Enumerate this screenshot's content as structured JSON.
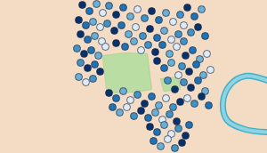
{
  "chart_data": {
    "type": "scatter",
    "tick_labels": false,
    "grid": false,
    "xlim": [
      0,
      300
    ],
    "ylim": [
      172,
      0
    ],
    "marker": "circle",
    "x": [
      92,
      100,
      108,
      115,
      122,
      130,
      138,
      146,
      154,
      162,
      170,
      178,
      186,
      194,
      202,
      210,
      218,
      226,
      206,
      214,
      222,
      230,
      88,
      96,
      104,
      112,
      120,
      90,
      98,
      106,
      114,
      86,
      94,
      102,
      110,
      118,
      90,
      98,
      106,
      88,
      96,
      104,
      112,
      128,
      136,
      144,
      152,
      160,
      168,
      176,
      184,
      192,
      200,
      130,
      140,
      150,
      158,
      166,
      174,
      182,
      190,
      198,
      206,
      208,
      216,
      224,
      232,
      204,
      212,
      220,
      228,
      236,
      206,
      214,
      222,
      230,
      210,
      218,
      226,
      234,
      176,
      184,
      192,
      200,
      188,
      196,
      122,
      130,
      138,
      146,
      154,
      162,
      170,
      178,
      186,
      194,
      202,
      126,
      134,
      142,
      150,
      158,
      166,
      174,
      182,
      190,
      198,
      168,
      176,
      184,
      192,
      200,
      208,
      172,
      180,
      188,
      196,
      204,
      212
    ],
    "y": [
      5,
      12,
      4,
      14,
      6,
      16,
      8,
      18,
      10,
      20,
      12,
      22,
      14,
      24,
      16,
      8,
      18,
      10,
      28,
      36,
      30,
      40,
      22,
      28,
      24,
      30,
      26,
      38,
      44,
      40,
      46,
      54,
      60,
      56,
      62,
      52,
      70,
      76,
      72,
      86,
      92,
      88,
      80,
      34,
      28,
      38,
      30,
      40,
      32,
      42,
      34,
      44,
      38,
      48,
      52,
      46,
      56,
      50,
      58,
      50,
      60,
      52,
      46,
      62,
      56,
      66,
      60,
      74,
      80,
      72,
      84,
      78,
      92,
      98,
      90,
      102,
      110,
      116,
      108,
      118,
      68,
      76,
      70,
      84,
      90,
      100,
      104,
      110,
      102,
      112,
      106,
      116,
      108,
      118,
      110,
      120,
      114,
      120,
      126,
      120,
      130,
      124,
      132,
      126,
      134,
      128,
      136,
      142,
      148,
      140,
      150,
      144,
      152,
      158,
      164,
      156,
      166,
      160,
      140
    ],
    "colors": [
      "#08306b",
      "#2171b5",
      "#6baed6",
      "#deebf7",
      "#4292c6",
      "#08306b",
      "#2171b5",
      "#6baed6",
      "#deebf7",
      "#4292c6",
      "#08306b",
      "#2171b5",
      "#6baed6",
      "#deebf7",
      "#4292c6",
      "#08306b",
      "#2171b5",
      "#6baed6",
      "#deebf7",
      "#4292c6",
      "#08306b",
      "#2171b5",
      "#08306b",
      "#2171b5",
      "#6baed6",
      "#deebf7",
      "#4292c6",
      "#08306b",
      "#2171b5",
      "#6baed6",
      "#deebf7",
      "#4292c6",
      "#08306b",
      "#2171b5",
      "#6baed6",
      "#deebf7",
      "#4292c6",
      "#08306b",
      "#2171b5",
      "#6baed6",
      "#deebf7",
      "#4292c6",
      "#08306b",
      "#08306b",
      "#2171b5",
      "#6baed6",
      "#deebf7",
      "#4292c6",
      "#08306b",
      "#2171b5",
      "#6baed6",
      "#deebf7",
      "#4292c6",
      "#08306b",
      "#2171b5",
      "#6baed6",
      "#deebf7",
      "#4292c6",
      "#08306b",
      "#2171b5",
      "#6baed6",
      "#deebf7",
      "#4292c6",
      "#08306b",
      "#2171b5",
      "#6baed6",
      "#deebf7",
      "#4292c6",
      "#08306b",
      "#2171b5",
      "#6baed6",
      "#deebf7",
      "#4292c6",
      "#08306b",
      "#2171b5",
      "#6baed6",
      "#deebf7",
      "#4292c6",
      "#08306b",
      "#2171b5",
      "#08306b",
      "#2171b5",
      "#6baed6",
      "#deebf7",
      "#4292c6",
      "#08306b",
      "#08306b",
      "#2171b5",
      "#6baed6",
      "#deebf7",
      "#4292c6",
      "#08306b",
      "#2171b5",
      "#6baed6",
      "#deebf7",
      "#4292c6",
      "#08306b",
      "#2171b5",
      "#6baed6",
      "#deebf7",
      "#4292c6",
      "#08306b",
      "#2171b5",
      "#6baed6",
      "#deebf7",
      "#4292c6",
      "#08306b",
      "#08306b",
      "#2171b5",
      "#6baed6",
      "#deebf7",
      "#4292c6",
      "#08306b",
      "#2171b5",
      "#6baed6",
      "#deebf7",
      "#4292c6",
      "#08306b",
      "#2171b5"
    ],
    "parks": [
      {
        "x": [
          115,
          140,
          165,
          170,
          150,
          120
        ],
        "y": [
          62,
          59,
          60,
          100,
          103,
          104
        ]
      },
      {
        "x": [
          180,
          200,
          202,
          184
        ],
        "y": [
          88,
          86,
          100,
          102
        ]
      }
    ],
    "river": {
      "x": [
        300,
        275,
        258,
        250,
        255,
        275,
        300
      ],
      "y": [
        90,
        85,
        95,
        115,
        135,
        145,
        148
      ]
    }
  }
}
